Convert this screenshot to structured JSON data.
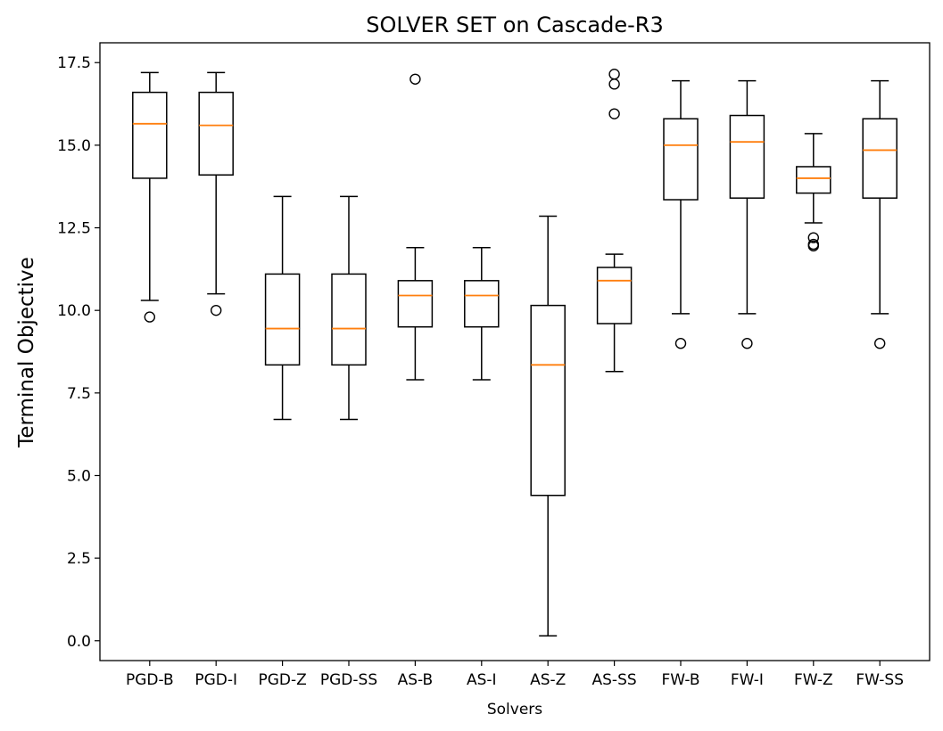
{
  "chart_data": {
    "type": "box",
    "title": "SOLVER SET on Cascade-R3",
    "xlabel": "Solvers",
    "ylabel": "Terminal Objective",
    "ylim": [
      -0.6,
      18.1
    ],
    "yticks": [
      0.0,
      2.5,
      5.0,
      7.5,
      10.0,
      12.5,
      15.0,
      17.5
    ],
    "ytick_labels": [
      "0.0",
      "2.5",
      "5.0",
      "7.5",
      "10.0",
      "12.5",
      "15.0",
      "17.5"
    ],
    "grid": false,
    "categories": [
      "PGD-B",
      "PGD-I",
      "PGD-Z",
      "PGD-SS",
      "AS-B",
      "AS-I",
      "AS-Z",
      "AS-SS",
      "FW-B",
      "FW-I",
      "FW-Z",
      "FW-SS"
    ],
    "boxes": [
      {
        "whisker_low": 10.3,
        "q1": 14.0,
        "median": 15.65,
        "q3": 16.6,
        "whisker_high": 17.2,
        "outliers": [
          9.8
        ]
      },
      {
        "whisker_low": 10.5,
        "q1": 14.1,
        "median": 15.6,
        "q3": 16.6,
        "whisker_high": 17.2,
        "outliers": [
          10.0
        ]
      },
      {
        "whisker_low": 6.7,
        "q1": 8.35,
        "median": 9.45,
        "q3": 11.1,
        "whisker_high": 13.45,
        "outliers": []
      },
      {
        "whisker_low": 6.7,
        "q1": 8.35,
        "median": 9.45,
        "q3": 11.1,
        "whisker_high": 13.45,
        "outliers": []
      },
      {
        "whisker_low": 7.9,
        "q1": 9.5,
        "median": 10.45,
        "q3": 10.9,
        "whisker_high": 11.9,
        "outliers": [
          17.0
        ]
      },
      {
        "whisker_low": 7.9,
        "q1": 9.5,
        "median": 10.45,
        "q3": 10.9,
        "whisker_high": 11.9,
        "outliers": []
      },
      {
        "whisker_low": 0.15,
        "q1": 4.4,
        "median": 8.35,
        "q3": 10.15,
        "whisker_high": 12.85,
        "outliers": []
      },
      {
        "whisker_low": 8.15,
        "q1": 9.6,
        "median": 10.9,
        "q3": 11.3,
        "whisker_high": 11.7,
        "outliers": [
          15.95,
          16.85,
          17.15
        ]
      },
      {
        "whisker_low": 9.9,
        "q1": 13.35,
        "median": 15.0,
        "q3": 15.8,
        "whisker_high": 16.95,
        "outliers": [
          9.0
        ]
      },
      {
        "whisker_low": 9.9,
        "q1": 13.4,
        "median": 15.1,
        "q3": 15.9,
        "whisker_high": 16.95,
        "outliers": [
          9.0
        ]
      },
      {
        "whisker_low": 12.65,
        "q1": 13.55,
        "median": 14.0,
        "q3": 14.35,
        "whisker_high": 15.35,
        "outliers": [
          11.95,
          12.0,
          12.2
        ]
      },
      {
        "whisker_low": 9.9,
        "q1": 13.4,
        "median": 14.85,
        "q3": 15.8,
        "whisker_high": 16.95,
        "outliers": [
          9.0
        ]
      }
    ],
    "colors": {
      "box": "#000000",
      "median": "#ff7f0e",
      "outlier": "#000000"
    }
  }
}
